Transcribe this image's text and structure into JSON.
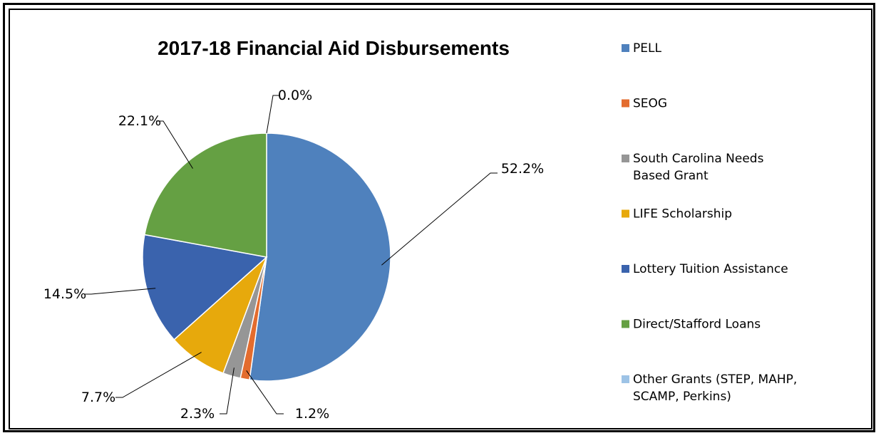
{
  "chart_data": {
    "type": "pie",
    "title": "2017-18 Financial Aid Disbursements",
    "legend_position": "right",
    "slices": [
      {
        "name": "PELL",
        "value": 52.2,
        "label": "52.2%",
        "color": "#4F81BD",
        "legend_lines": [
          "PELL"
        ]
      },
      {
        "name": "SEOG",
        "value": 1.2,
        "label": "1.2%",
        "color": "#E36C2E",
        "legend_lines": [
          "SEOG"
        ]
      },
      {
        "name": "South Carolina Needs Based Grant",
        "value": 2.3,
        "label": "2.3%",
        "color": "#969696",
        "legend_lines": [
          "South Carolina Needs",
          "Based Grant"
        ]
      },
      {
        "name": "LIFE Scholarship",
        "value": 7.7,
        "label": "7.7%",
        "color": "#E7A90C",
        "legend_lines": [
          "LIFE Scholarship"
        ]
      },
      {
        "name": "Lottery Tuition Assistance",
        "value": 14.5,
        "label": "14.5%",
        "color": "#3A63AD",
        "legend_lines": [
          "Lottery Tuition Assistance"
        ]
      },
      {
        "name": "Direct/Stafford Loans",
        "value": 22.1,
        "label": "22.1%",
        "color": "#65A043",
        "legend_lines": [
          "Direct/Stafford Loans"
        ]
      },
      {
        "name": "Other Grants (STEP, MAHP, SCAMP, Perkins)",
        "value": 0.0,
        "label": "0.0%",
        "color": "#9DC3E6",
        "legend_lines": [
          "Other Grants (STEP, MAHP,",
          "SCAMP, Perkins)"
        ]
      }
    ]
  }
}
